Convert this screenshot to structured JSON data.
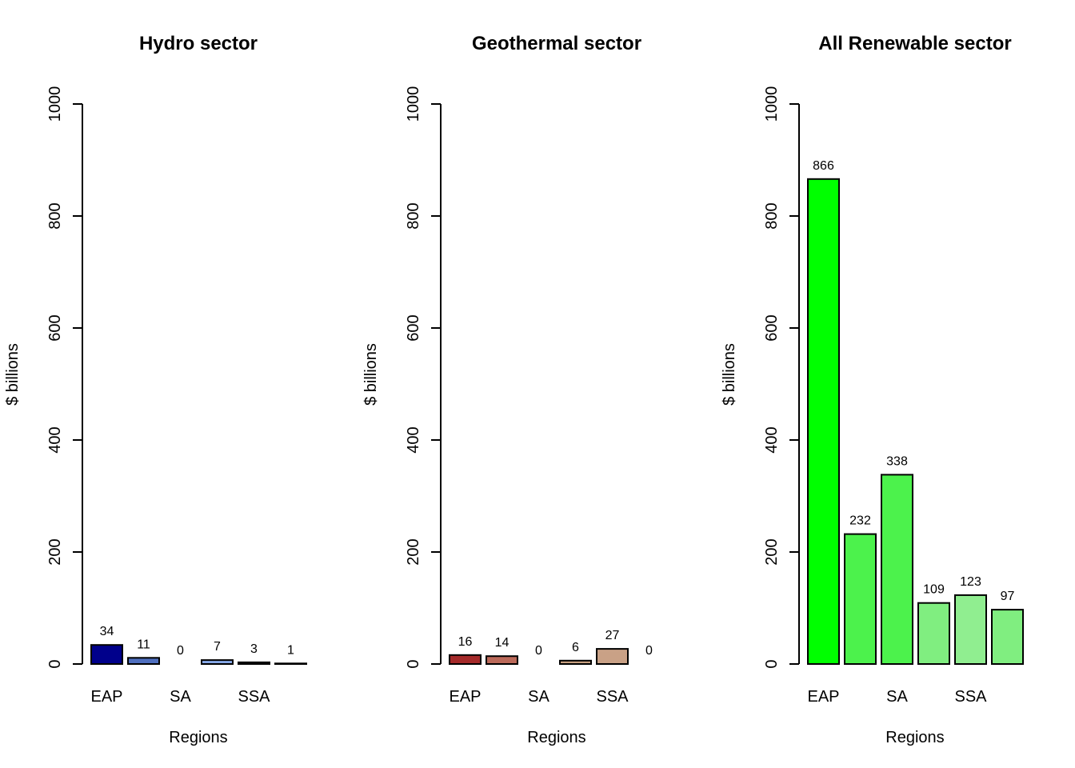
{
  "chart_data": [
    {
      "type": "bar",
      "title": "Hydro sector",
      "xlabel": "Regions",
      "ylabel": "$ billions",
      "ylim": [
        0,
        1000
      ],
      "yticks": [
        0,
        200,
        400,
        600,
        800,
        1000
      ],
      "categories": [
        "EAP",
        "",
        "SA",
        "",
        "SSA",
        ""
      ],
      "values": [
        34,
        11,
        0,
        7,
        3,
        1
      ],
      "colors": [
        "#00008B",
        "#4F6FBF",
        "#ADD8E6",
        "#87A9E8",
        "#1A1A1A",
        "#ffffff"
      ]
    },
    {
      "type": "bar",
      "title": "Geothermal sector",
      "xlabel": "Regions",
      "ylabel": "$ billions",
      "ylim": [
        0,
        1000
      ],
      "yticks": [
        0,
        200,
        400,
        600,
        800,
        1000
      ],
      "categories": [
        "EAP",
        "",
        "SA",
        "",
        "SSA",
        ""
      ],
      "values": [
        16,
        14,
        0,
        6,
        27,
        0
      ],
      "colors": [
        "#A52A2A",
        "#BC6A5A",
        "#D2B48C",
        "#C8A080",
        "#C9A186",
        "#ffffff"
      ]
    },
    {
      "type": "bar",
      "title": "All Renewable sector",
      "xlabel": "Regions",
      "ylabel": "$ billions",
      "ylim": [
        0,
        1000
      ],
      "yticks": [
        0,
        200,
        400,
        600,
        800,
        1000
      ],
      "categories": [
        "EAP",
        "",
        "SA",
        "",
        "SSA",
        ""
      ],
      "values": [
        866,
        232,
        338,
        109,
        123,
        97
      ],
      "colors": [
        "#00FF00",
        "#4CF24C",
        "#4CF24C",
        "#80EE80",
        "#90EE90",
        "#80EE80"
      ]
    }
  ]
}
